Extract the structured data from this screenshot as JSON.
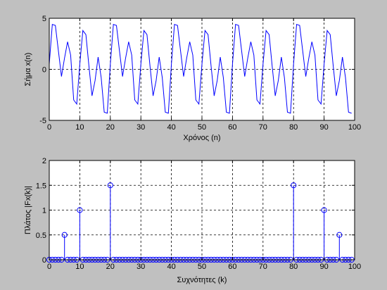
{
  "window": {
    "background": "#c0c0c0"
  },
  "colors": {
    "series": "#0000ff",
    "axes": "#000000",
    "plot_bg": "#ffffff",
    "grid": "#000000"
  },
  "chart_data": [
    {
      "type": "line",
      "xlabel": "Χρόνος (n)",
      "ylabel": "Σήμα x(n)",
      "xlim": [
        0,
        100
      ],
      "ylim": [
        -5,
        5
      ],
      "xticks": [
        0,
        10,
        20,
        30,
        40,
        50,
        60,
        70,
        80,
        90,
        100
      ],
      "yticks": [
        -5,
        0,
        5
      ],
      "grid": true,
      "series": [
        {
          "x": [
            0,
            1,
            2,
            3,
            4,
            5,
            6,
            7,
            8,
            9,
            10,
            11,
            12,
            13,
            14,
            15,
            16,
            17,
            18,
            19,
            20,
            21,
            22,
            23,
            24,
            25,
            26,
            27,
            28,
            29,
            30,
            31,
            32,
            33,
            34,
            35,
            36,
            37,
            38,
            39,
            40,
            41,
            42,
            43,
            44,
            45,
            46,
            47,
            48,
            49,
            50,
            51,
            52,
            53,
            54,
            55,
            56,
            57,
            58,
            59,
            60,
            61,
            62,
            63,
            64,
            65,
            66,
            67,
            68,
            69,
            70,
            71,
            72,
            73,
            74,
            75,
            76,
            77,
            78,
            79,
            80,
            81,
            82,
            83,
            84,
            85,
            86,
            87,
            88,
            89,
            90,
            91,
            92,
            93,
            94,
            95,
            96,
            97,
            98,
            99
          ],
          "values": [
            0.5,
            4.4,
            4.3,
            1.8,
            -0.7,
            1.1,
            2.7,
            1.4,
            -3.0,
            -3.4,
            0.5,
            3.8,
            3.4,
            0.3,
            -2.6,
            -1.1,
            1.2,
            -0.8,
            -4.2,
            -4.3,
            0.5,
            4.4,
            4.3,
            1.8,
            -0.7,
            1.1,
            2.7,
            1.4,
            -3.0,
            -3.4,
            0.5,
            3.8,
            3.4,
            0.3,
            -2.6,
            -1.1,
            1.2,
            -0.8,
            -4.2,
            -4.3,
            0.5,
            4.4,
            4.3,
            1.8,
            -0.7,
            1.1,
            2.7,
            1.4,
            -3.0,
            -3.4,
            0.5,
            3.8,
            3.4,
            0.3,
            -2.6,
            -1.1,
            1.2,
            -0.8,
            -4.2,
            -4.3,
            0.5,
            4.4,
            4.3,
            1.8,
            -0.7,
            1.1,
            2.7,
            1.4,
            -3.0,
            -3.4,
            0.5,
            3.8,
            3.4,
            0.3,
            -2.6,
            -1.1,
            1.2,
            -0.8,
            -4.2,
            -4.3,
            0.5,
            4.4,
            4.3,
            1.8,
            -0.7,
            1.1,
            2.7,
            1.4,
            -3.0,
            -3.4,
            0.5,
            3.8,
            3.4,
            0.3,
            -2.6,
            -1.1,
            1.2,
            -0.8,
            -4.2,
            -4.3
          ]
        }
      ]
    },
    {
      "type": "stem",
      "xlabel": "Συχνότητες (k)",
      "ylabel": "Πλάτος |Fx(k)|",
      "xlim": [
        0,
        100
      ],
      "ylim": [
        0,
        2
      ],
      "xticks": [
        0,
        10,
        20,
        30,
        40,
        50,
        60,
        70,
        80,
        90,
        100
      ],
      "yticks": [
        0,
        0.5,
        1,
        1.5,
        2
      ],
      "grid": true,
      "series": [
        {
          "x_range": [
            0,
            99
          ],
          "nonzero": [
            {
              "k": 5,
              "value": 0.5
            },
            {
              "k": 10,
              "value": 1
            },
            {
              "k": 20,
              "value": 1.5
            },
            {
              "k": 80,
              "value": 1.5
            },
            {
              "k": 90,
              "value": 1
            },
            {
              "k": 95,
              "value": 0.5
            }
          ],
          "default_value": 0
        }
      ]
    }
  ]
}
